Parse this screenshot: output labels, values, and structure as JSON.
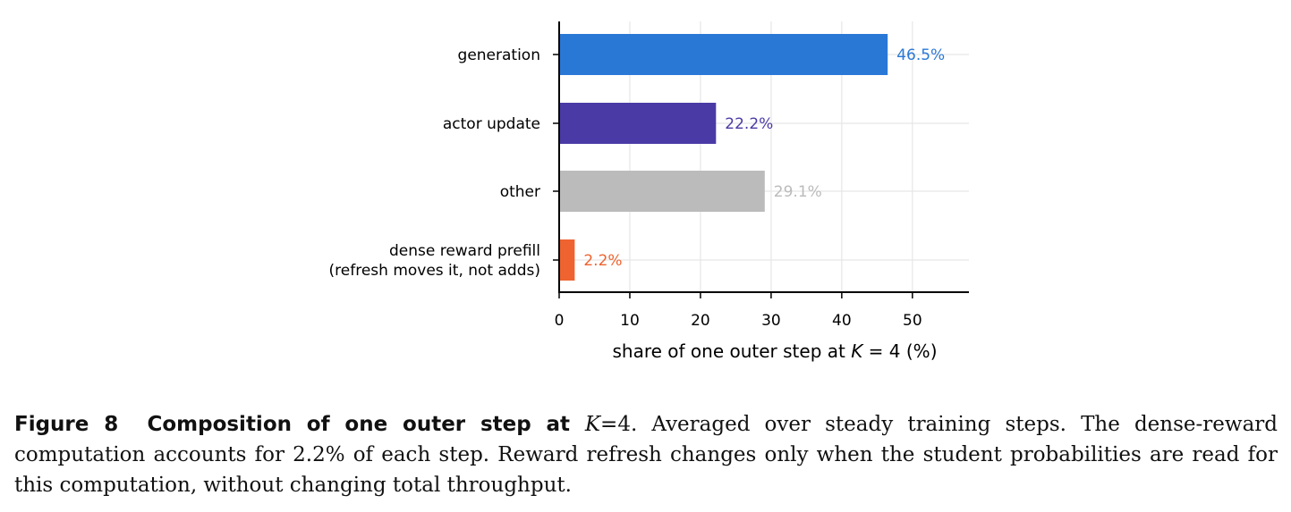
{
  "chart_data": {
    "type": "bar",
    "orientation": "horizontal",
    "categories": [
      [
        "generation"
      ],
      [
        "actor update"
      ],
      [
        "other"
      ],
      [
        "dense reward prefill",
        "(refresh moves it, not adds)"
      ]
    ],
    "values": [
      46.5,
      22.2,
      29.1,
      2.2
    ],
    "value_labels": [
      "46.5%",
      "22.2%",
      "29.1%",
      "2.2%"
    ],
    "colors": [
      "#2a78d6",
      "#4a3aa6",
      "#bbbbbb",
      "#ee6330"
    ],
    "xlabel_parts": [
      "share of one outer step at ",
      "K",
      " = 4 (%)"
    ],
    "xticks": [
      0,
      10,
      20,
      30,
      40,
      50
    ],
    "xlim": [
      0,
      58
    ],
    "grid": true
  },
  "caption": {
    "figure_label": "Figure 8",
    "title_prefix": "Composition of one outer step at ",
    "title_var": "K",
    "title_suffix": "=4.",
    "body": " Averaged over steady training steps. The dense-reward computation accounts for 2.2% of each step. Reward refresh changes only when the student probabilities are read for this computation, without changing total throughput."
  }
}
